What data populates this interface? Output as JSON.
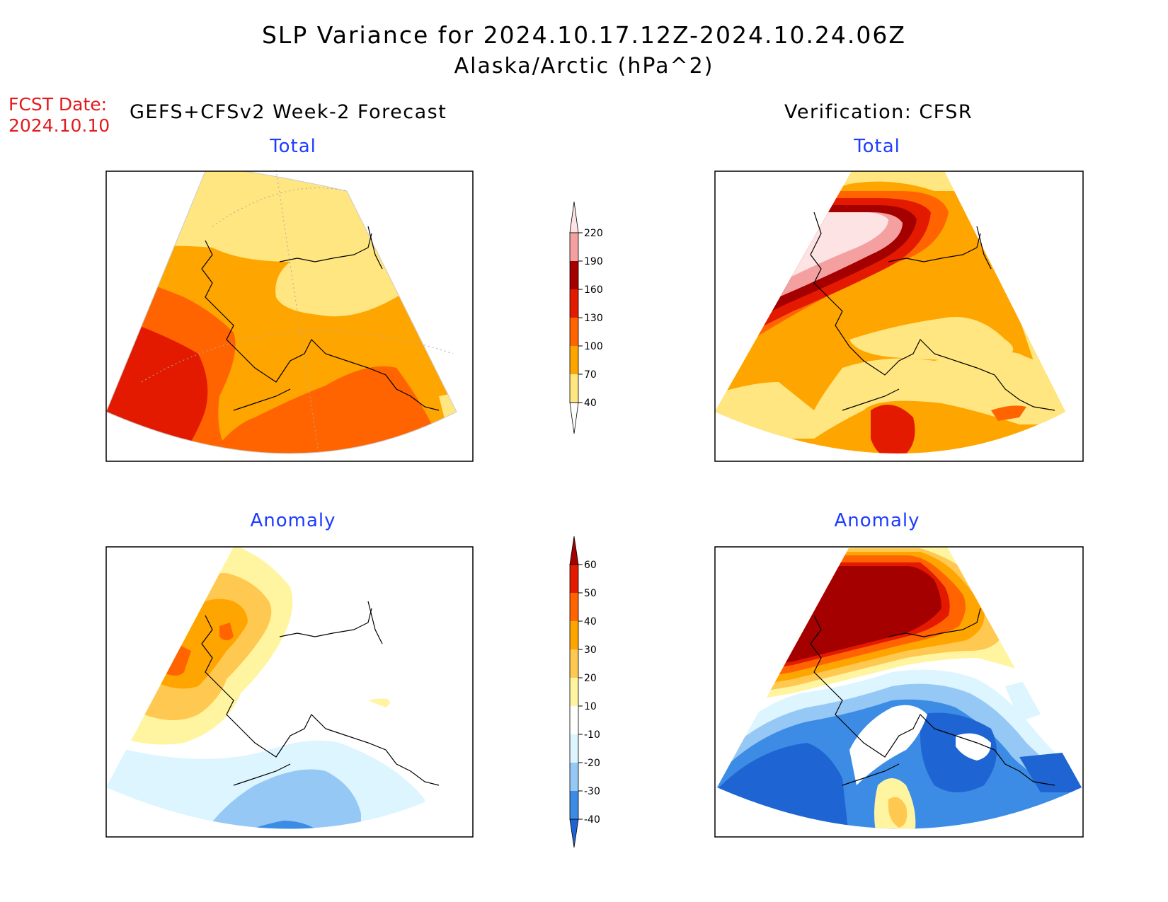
{
  "title": "SLP Variance for 2024.10.17.12Z-2024.10.24.06Z",
  "subtitle": "Alaska/Arctic (hPa^2)",
  "fcst_date_label": "FCST Date:",
  "fcst_date_value": "2024.10.10",
  "left_header": "GEFS+CFSv2 Week-2 Forecast",
  "right_header": "Verification: CFSR",
  "panels": {
    "fcst_total": "Total",
    "verif_total": "Total",
    "fcst_anom": "Anomaly",
    "verif_anom": "Anomaly"
  },
  "colorbar_total": {
    "ticks": [
      "40",
      "70",
      "100",
      "130",
      "160",
      "190",
      "220"
    ],
    "colors": [
      "#ffffff",
      "#ffe680",
      "#ffa500",
      "#ff6400",
      "#e31a00",
      "#a50000",
      "#f4a0a0",
      "#fde3e3"
    ]
  },
  "colorbar_anomaly": {
    "ticks": [
      "-40",
      "-30",
      "-20",
      "-10",
      "10",
      "20",
      "30",
      "40",
      "50",
      "60"
    ],
    "colors": [
      "#1e64d2",
      "#3c8ce6",
      "#96c8f5",
      "#dcf5ff",
      "#ffffff",
      "#fff5a0",
      "#ffc850",
      "#ffa500",
      "#ff6400",
      "#e31a00",
      "#a50000"
    ]
  }
}
